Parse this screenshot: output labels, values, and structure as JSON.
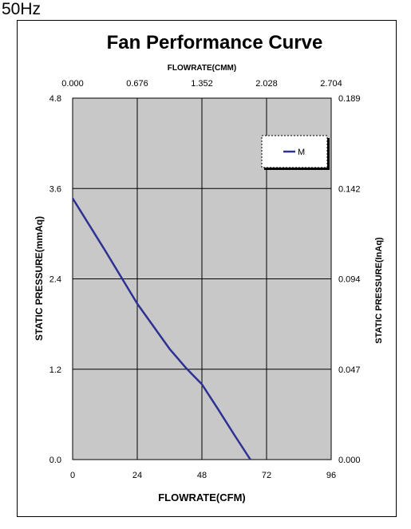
{
  "header": {
    "frequency": "50Hz"
  },
  "colors": {
    "plot_bg": "#c8c8c8",
    "curve": "#2e3192",
    "grid": "#000000"
  },
  "chart_data": {
    "type": "line",
    "title": "Fan Performance Curve",
    "xlabel": "FLOWRATE(CFM)",
    "x2label": "FLOWRATE(CMM)",
    "ylabel": "STATIC PRESSURE(mmAq)",
    "y2label": "STATIC PRESSURE(InAq)",
    "xlim": [
      0,
      96
    ],
    "ylim": [
      0,
      4.8
    ],
    "x_ticks": [
      "0",
      "24",
      "48",
      "72",
      "96"
    ],
    "x2_ticks": [
      "0.000",
      "0.676",
      "1.352",
      "2.028",
      "2.704"
    ],
    "y_ticks": [
      "0.0",
      "1.2",
      "2.4",
      "3.6",
      "4.8"
    ],
    "y2_ticks": [
      "0.000",
      "0.047",
      "0.094",
      "0.142",
      "0.189"
    ],
    "grid": true,
    "legend_position": "top-right",
    "series": [
      {
        "name": "M",
        "x": [
          0,
          12,
          24,
          36,
          42,
          48,
          54,
          60,
          66
        ],
        "y": [
          3.47,
          2.78,
          2.07,
          1.47,
          1.22,
          1.0,
          0.67,
          0.33,
          0.0
        ]
      }
    ]
  }
}
